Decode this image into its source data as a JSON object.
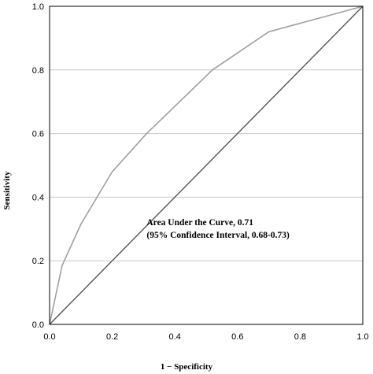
{
  "chart_data": {
    "type": "line",
    "xlabel": "1 − Specificity",
    "ylabel": "Sensitivity",
    "xlim": [
      0,
      1
    ],
    "ylim": [
      0,
      1
    ],
    "xticks": [
      "0.0",
      "0.2",
      "0.4",
      "0.6",
      "0.8",
      "1.0"
    ],
    "yticks": [
      "0.0",
      "0.2",
      "0.4",
      "0.6",
      "0.8",
      "1.0"
    ],
    "grid": "horizontal",
    "series": [
      {
        "role": "roc-curve",
        "color": "#a0a0a0",
        "x": [
          0.0,
          0.04,
          0.1,
          0.2,
          0.31,
          0.52,
          0.7,
          1.0
        ],
        "y": [
          0.0,
          0.185,
          0.315,
          0.48,
          0.6,
          0.8,
          0.92,
          1.0
        ]
      },
      {
        "role": "reference-line",
        "color": "#555555",
        "x": [
          0.0,
          1.0
        ],
        "y": [
          0.0,
          1.0
        ]
      }
    ],
    "annotations": [
      "Area Under the Curve, 0.71",
      "(95% Confidence Interval, 0.68-0.73)"
    ]
  }
}
